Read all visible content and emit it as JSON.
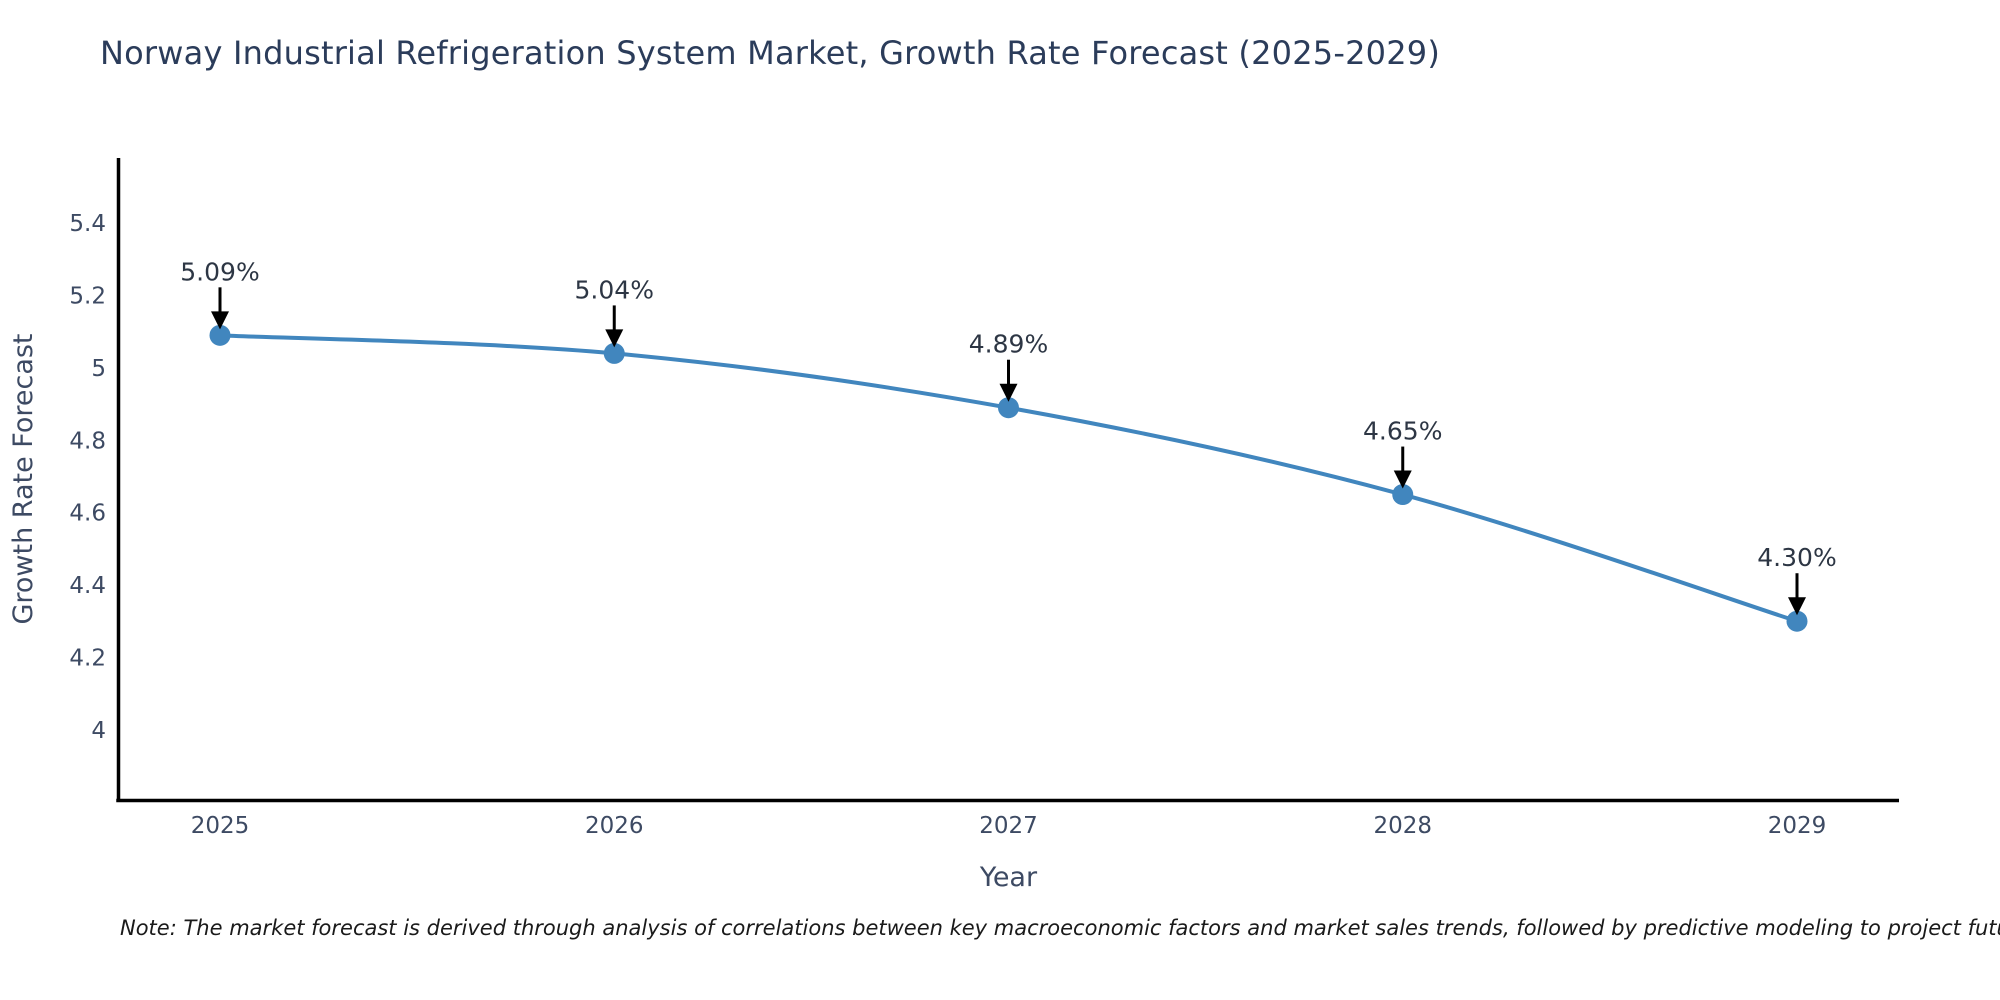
{
  "page": {
    "background": "#ffffff"
  },
  "chart_data": {
    "type": "line",
    "title": "Norway Industrial Refrigeration System Market, Growth Rate Forecast (2025-2029)",
    "xlabel": "Year",
    "ylabel": "Growth Rate Forecast",
    "categories": [
      "2025",
      "2026",
      "2027",
      "2028",
      "2029"
    ],
    "series": [
      {
        "name": "Growth Rate Forecast",
        "values": [
          5.09,
          5.04,
          4.89,
          4.65,
          4.3
        ]
      }
    ],
    "point_labels": [
      "5.09%",
      "5.04%",
      "4.89%",
      "4.65%",
      "4.30%"
    ],
    "yticks": [
      "4",
      "4.2",
      "4.4",
      "4.6",
      "4.8",
      "5",
      "5.2",
      "5.4"
    ],
    "ylim": [
      3.806,
      5.58
    ],
    "grid": false,
    "legend_position": "none",
    "colors": {
      "line": "#4186be",
      "marker": "#4186be",
      "axis": "#000000",
      "tick_label": "#3d4a63",
      "axis_title": "#3d4a63",
      "title": "#2b3c5a",
      "annotation_text": "#2d3644",
      "annotation_arrow": "#000000"
    },
    "note": "Note: The market forecast is derived through analysis of correlations between key macroeconomic factors and market sales trends, followed by predictive modeling to project future sales"
  }
}
